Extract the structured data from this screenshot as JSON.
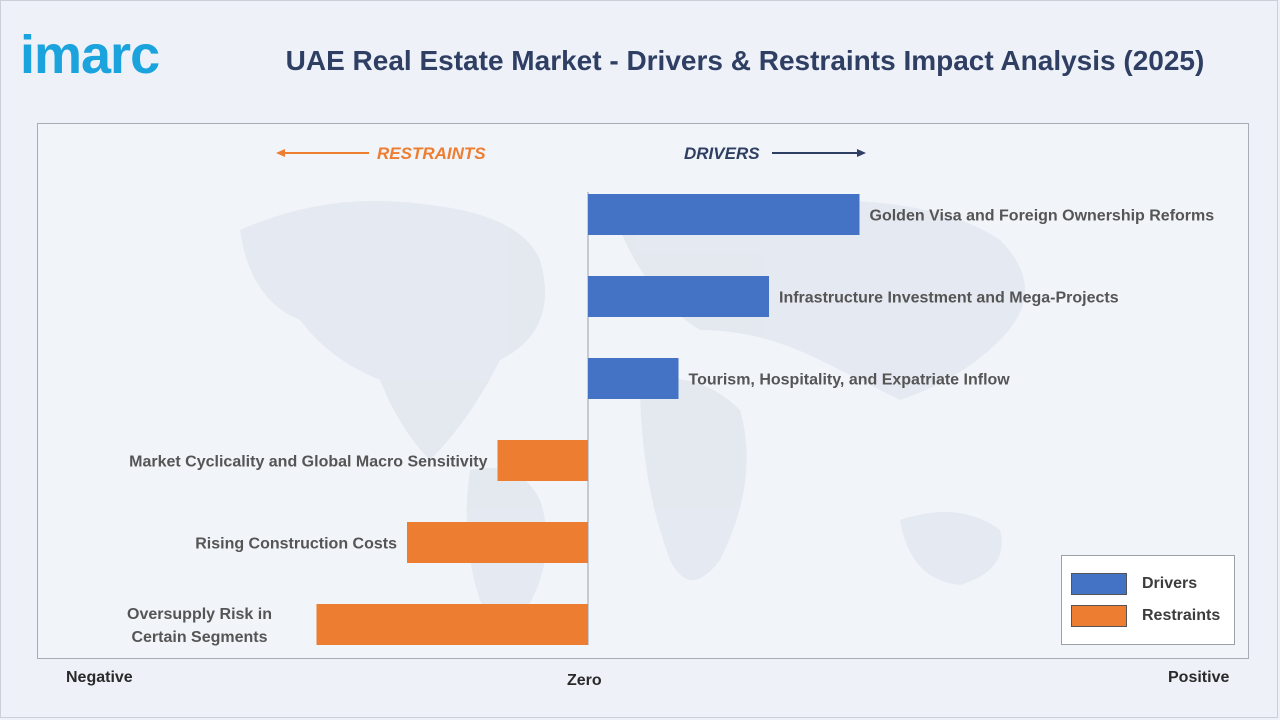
{
  "brand": {
    "logo_text": "imarc"
  },
  "header": {
    "title": "UAE Real Estate Market - Drivers & Restraints Impact Analysis (2025)"
  },
  "colors": {
    "drivers": "#4472c4",
    "restraints": "#ed7d31",
    "title": "#2f3e63",
    "logo": "#1aa3dc"
  },
  "axis": {
    "negative_label": "Negative",
    "zero_label": "Zero",
    "positive_label": "Positive"
  },
  "direction": {
    "restraints_label": "RESTRAINTS",
    "drivers_label": "DRIVERS"
  },
  "legend": {
    "drivers_label": "Drivers",
    "restraints_label": "Restraints"
  },
  "chart_data": {
    "type": "bar",
    "orientation": "horizontal",
    "title": "UAE Real Estate Market - Drivers & Restraints Impact Analysis (2025)",
    "categories": [
      "Golden Visa and Foreign Ownership Reforms",
      "Infrastructure Investment and Mega-Projects",
      "Tourism, Hospitality, and Expatriate Inflow",
      "Market Cyclicality and Global Macro Sensitivity",
      "Rising Construction Costs",
      "Oversupply Risk in Certain Segments"
    ],
    "series": [
      {
        "name": "Drivers",
        "values": [
          3,
          2,
          1,
          null,
          null,
          null
        ]
      },
      {
        "name": "Restraints",
        "values": [
          null,
          null,
          null,
          -1,
          -2,
          -3
        ]
      }
    ],
    "xlim": [
      -6,
      6
    ],
    "xlabel": "",
    "ylabel": "",
    "grid": false,
    "legend_position": "bottom-right"
  }
}
